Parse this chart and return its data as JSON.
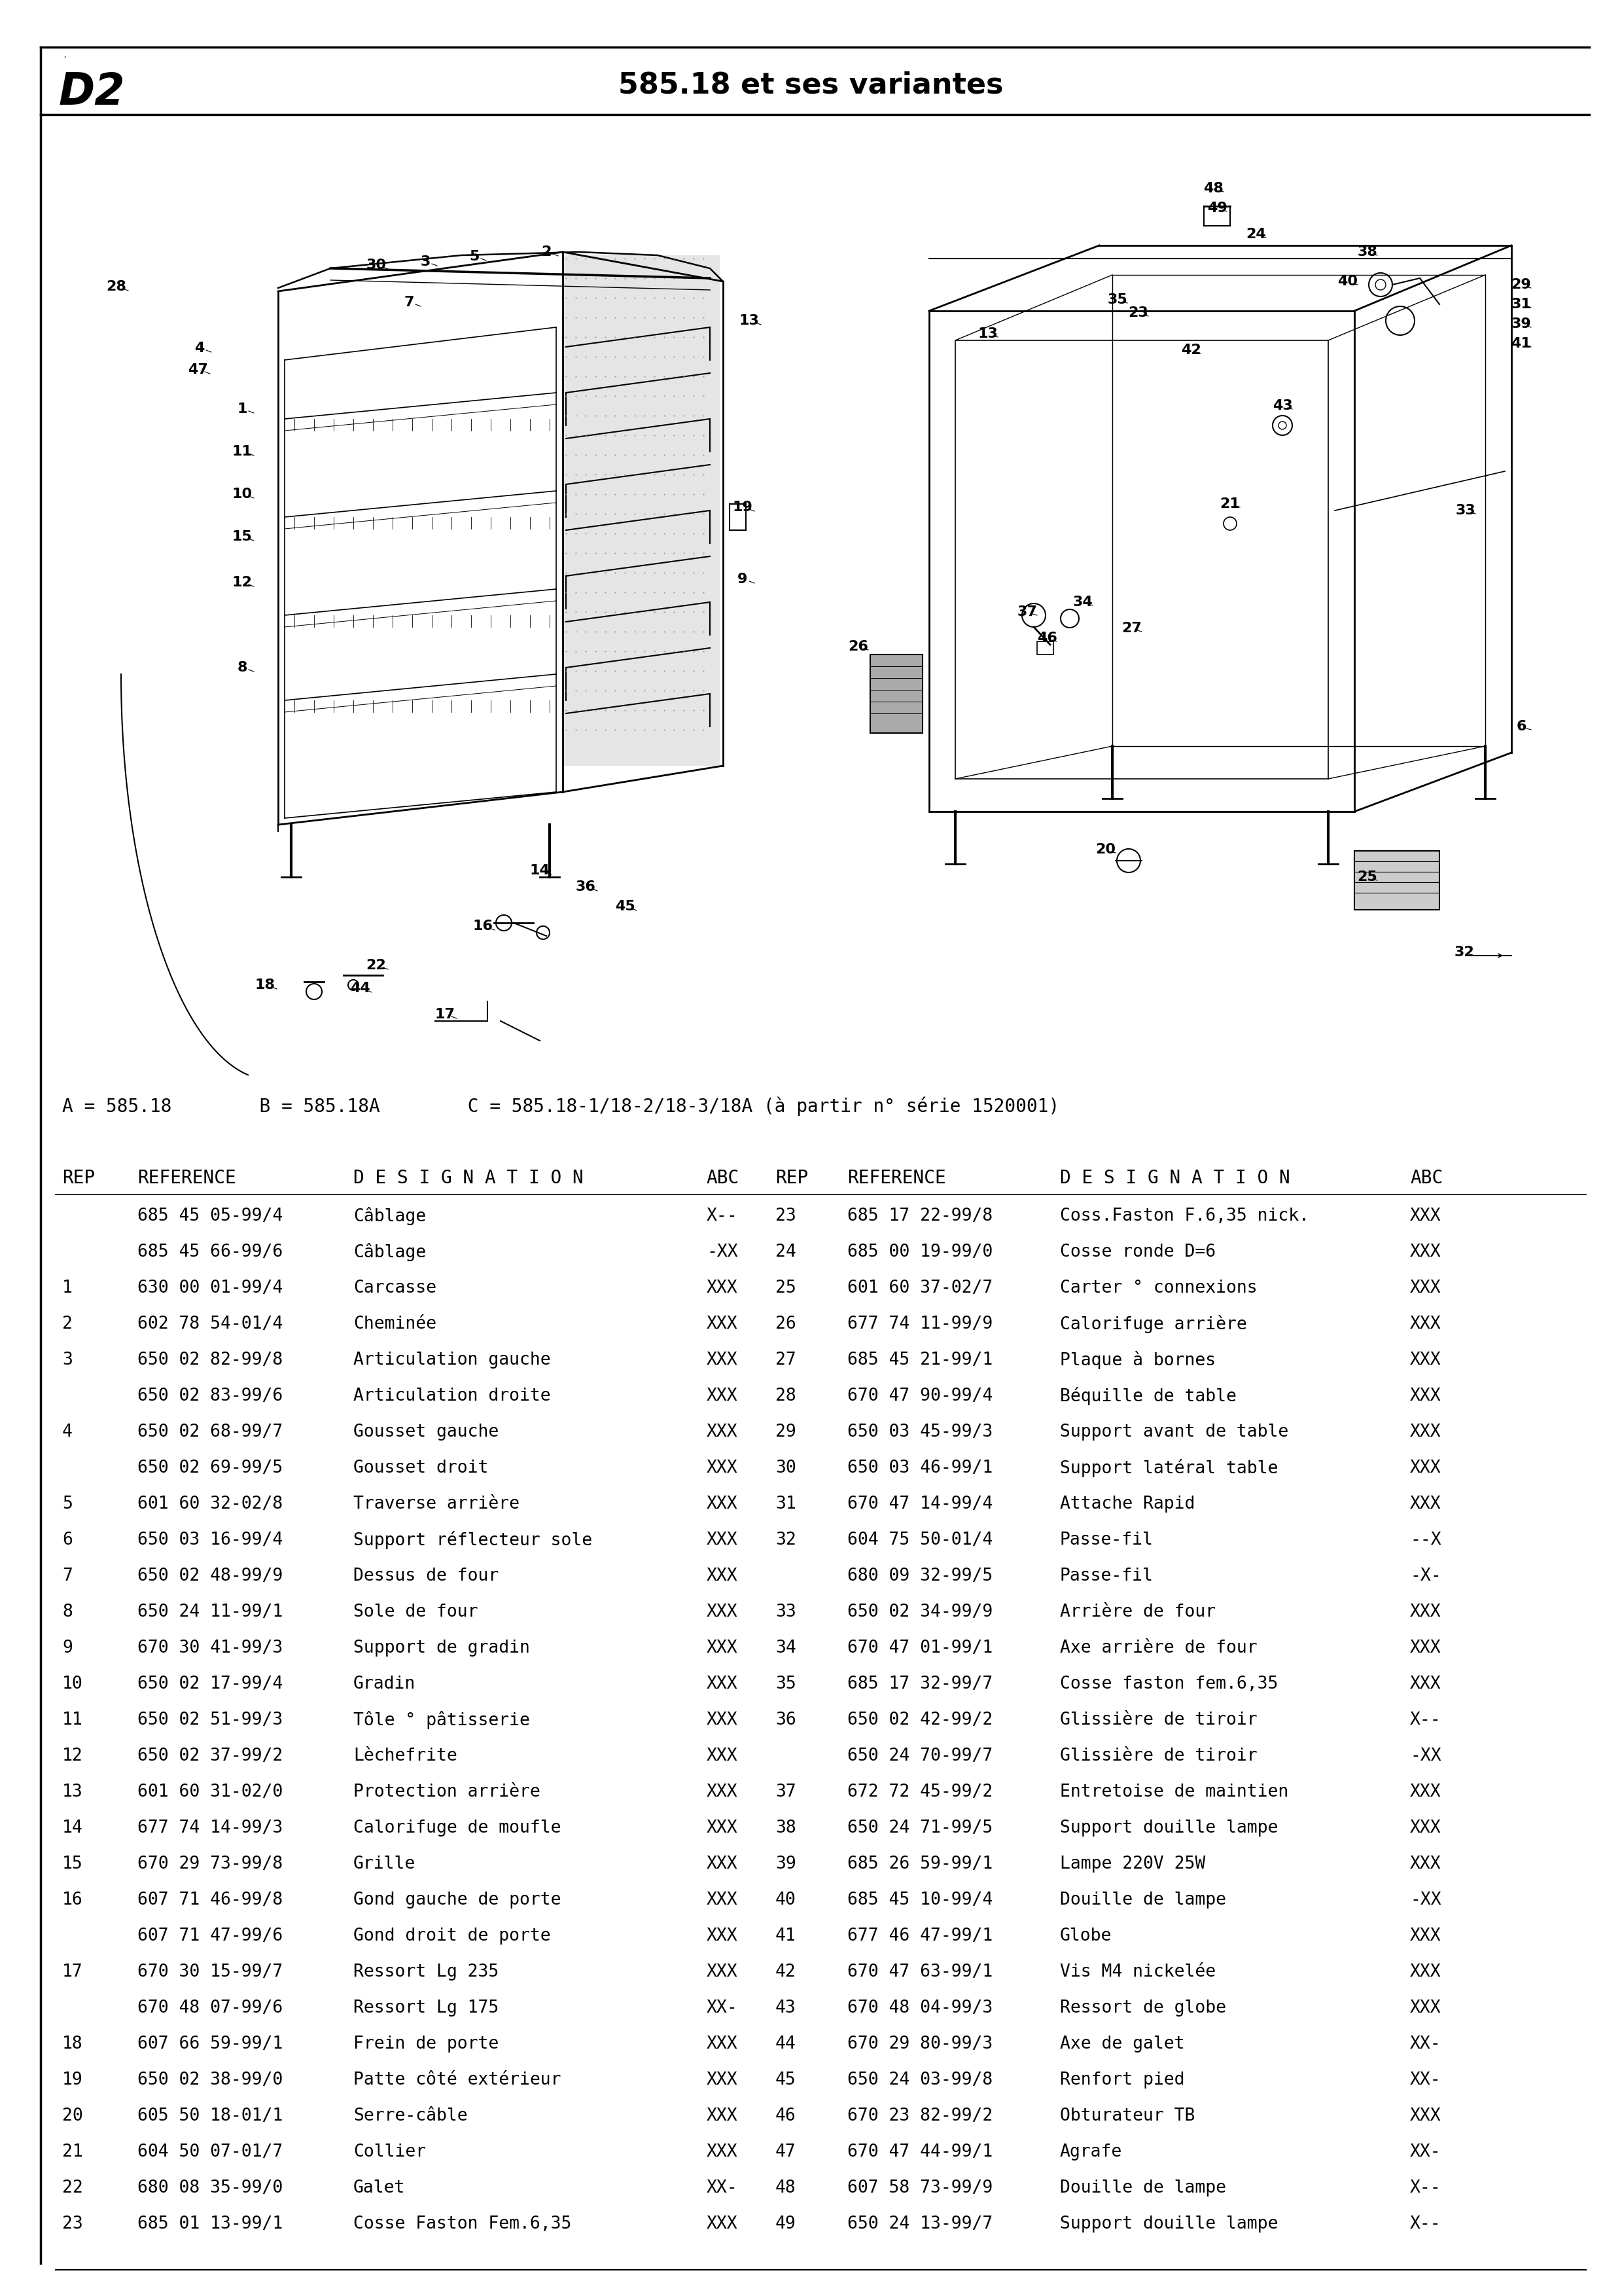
{
  "page_label": "D2",
  "header_center": "585.18 et ses variantes",
  "variant_line1": "A = 585.18        B = 585.18A        C = 585.18-1/18-2/18-3/18A (à partir n° série 1520001)",
  "background_color": "#f5f5f0",
  "text_color": "#000000",
  "table_rows": [
    [
      "",
      "685 45 05-99/4",
      "Câblage",
      "X--",
      "23",
      "685 17 22-99/8",
      "Coss.Faston F.6,35 nick.",
      "XXX"
    ],
    [
      "",
      "685 45 66-99/6",
      "Câblage",
      "-XX",
      "24",
      "685 00 19-99/0",
      "Cosse ronde D=6",
      "XXX"
    ],
    [
      "1",
      "630 00 01-99/4",
      "Carcasse",
      "XXX",
      "25",
      "601 60 37-02/7",
      "Carter ° connexions",
      "XXX"
    ],
    [
      "2",
      "602 78 54-01/4",
      "Cheminée",
      "XXX",
      "26",
      "677 74 11-99/9",
      "Calorifuge arrière",
      "XXX"
    ],
    [
      "3",
      "650 02 82-99/8",
      "Articulation gauche",
      "XXX",
      "27",
      "685 45 21-99/1",
      "Plaque à bornes",
      "XXX"
    ],
    [
      "",
      "650 02 83-99/6",
      "Articulation droite",
      "XXX",
      "28",
      "670 47 90-99/4",
      "Béquille de table",
      "XXX"
    ],
    [
      "4",
      "650 02 68-99/7",
      "Gousset gauche",
      "XXX",
      "29",
      "650 03 45-99/3",
      "Support avant de table",
      "XXX"
    ],
    [
      "",
      "650 02 69-99/5",
      "Gousset droit",
      "XXX",
      "30",
      "650 03 46-99/1",
      "Support latéral table",
      "XXX"
    ],
    [
      "5",
      "601 60 32-02/8",
      "Traverse arrière",
      "XXX",
      "31",
      "670 47 14-99/4",
      "Attache Rapid",
      "XXX"
    ],
    [
      "6",
      "650 03 16-99/4",
      "Support réflecteur sole",
      "XXX",
      "32",
      "604 75 50-01/4",
      "Passe-fil",
      "--X"
    ],
    [
      "7",
      "650 02 48-99/9",
      "Dessus de four",
      "XXX",
      "",
      "680 09 32-99/5",
      "Passe-fil",
      "-X-"
    ],
    [
      "8",
      "650 24 11-99/1",
      "Sole de four",
      "XXX",
      "33",
      "650 02 34-99/9",
      "Arrière de four",
      "XXX"
    ],
    [
      "9",
      "670 30 41-99/3",
      "Support de gradin",
      "XXX",
      "34",
      "670 47 01-99/1",
      "Axe arrière de four",
      "XXX"
    ],
    [
      "10",
      "650 02 17-99/4",
      "Gradin",
      "XXX",
      "35",
      "685 17 32-99/7",
      "Cosse faston fem.6,35",
      "XXX"
    ],
    [
      "11",
      "650 02 51-99/3",
      "Tôle ° pâtisserie",
      "XXX",
      "36",
      "650 02 42-99/2",
      "Glissière de tiroir",
      "X--"
    ],
    [
      "12",
      "650 02 37-99/2",
      "Lèchefrite",
      "XXX",
      "",
      "650 24 70-99/7",
      "Glissière de tiroir",
      "-XX"
    ],
    [
      "13",
      "601 60 31-02/0",
      "Protection arrière",
      "XXX",
      "37",
      "672 72 45-99/2",
      "Entretoise de maintien",
      "XXX"
    ],
    [
      "14",
      "677 74 14-99/3",
      "Calorifuge de moufle",
      "XXX",
      "38",
      "650 24 71-99/5",
      "Support douille lampe",
      "XXX"
    ],
    [
      "15",
      "670 29 73-99/8",
      "Grille",
      "XXX",
      "39",
      "685 26 59-99/1",
      "Lampe 220V 25W",
      "XXX"
    ],
    [
      "16",
      "607 71 46-99/8",
      "Gond gauche de porte",
      "XXX",
      "40",
      "685 45 10-99/4",
      "Douille de lampe",
      "-XX"
    ],
    [
      "",
      "607 71 47-99/6",
      "Gond droit de porte",
      "XXX",
      "41",
      "677 46 47-99/1",
      "Globe",
      "XXX"
    ],
    [
      "17",
      "670 30 15-99/7",
      "Ressort Lg 235",
      "XXX",
      "42",
      "670 47 63-99/1",
      "Vis M4 nickelée",
      "XXX"
    ],
    [
      "",
      "670 48 07-99/6",
      "Ressort Lg 175",
      "XX-",
      "43",
      "670 48 04-99/3",
      "Ressort de globe",
      "XXX"
    ],
    [
      "18",
      "607 66 59-99/1",
      "Frein de porte",
      "XXX",
      "44",
      "670 29 80-99/3",
      "Axe de galet",
      "XX-"
    ],
    [
      "19",
      "650 02 38-99/0",
      "Patte côté extérieur",
      "XXX",
      "45",
      "650 24 03-99/8",
      "Renfort pied",
      "XX-"
    ],
    [
      "20",
      "605 50 18-01/1",
      "Serre-câble",
      "XXX",
      "46",
      "670 23 82-99/2",
      "Obturateur TB",
      "XXX"
    ],
    [
      "21",
      "604 50 07-01/7",
      "Collier",
      "XXX",
      "47",
      "670 47 44-99/1",
      "Agrafe",
      "XX-"
    ],
    [
      "22",
      "680 08 35-99/0",
      "Galet",
      "XX-",
      "48",
      "607 58 73-99/9",
      "Douille de lampe",
      "X--"
    ],
    [
      "23",
      "685 01 13-99/1",
      "Cosse Faston Fem.6,35",
      "XXX",
      "49",
      "650 24 13-99/7",
      "Support douille lampe",
      "X--"
    ]
  ]
}
